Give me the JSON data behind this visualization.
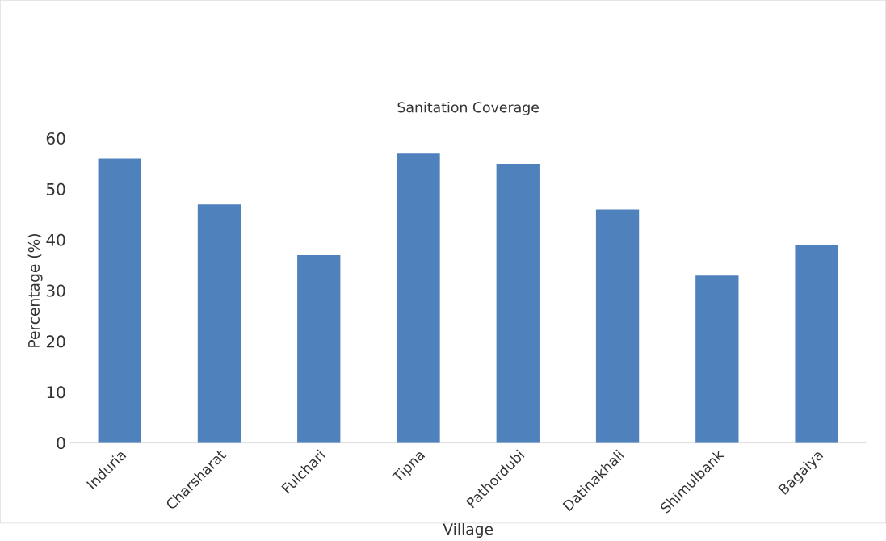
{
  "chart_data": {
    "type": "bar",
    "title": "Sanitation Coverage",
    "xlabel": "Village",
    "ylabel": "Percentage (%)",
    "categories": [
      "Induria",
      "Charsharat",
      "Fulchari",
      "Tipna",
      "Pathordubi",
      "Datinakhali",
      "Shimulbank",
      "Bagaiya"
    ],
    "values": [
      56,
      47,
      37,
      57,
      55,
      46,
      33,
      39
    ],
    "color": "#4f81bd",
    "ylim": [
      0,
      60
    ],
    "yticks": [
      0,
      10,
      20,
      30,
      40,
      50,
      60
    ],
    "grid": false
  }
}
